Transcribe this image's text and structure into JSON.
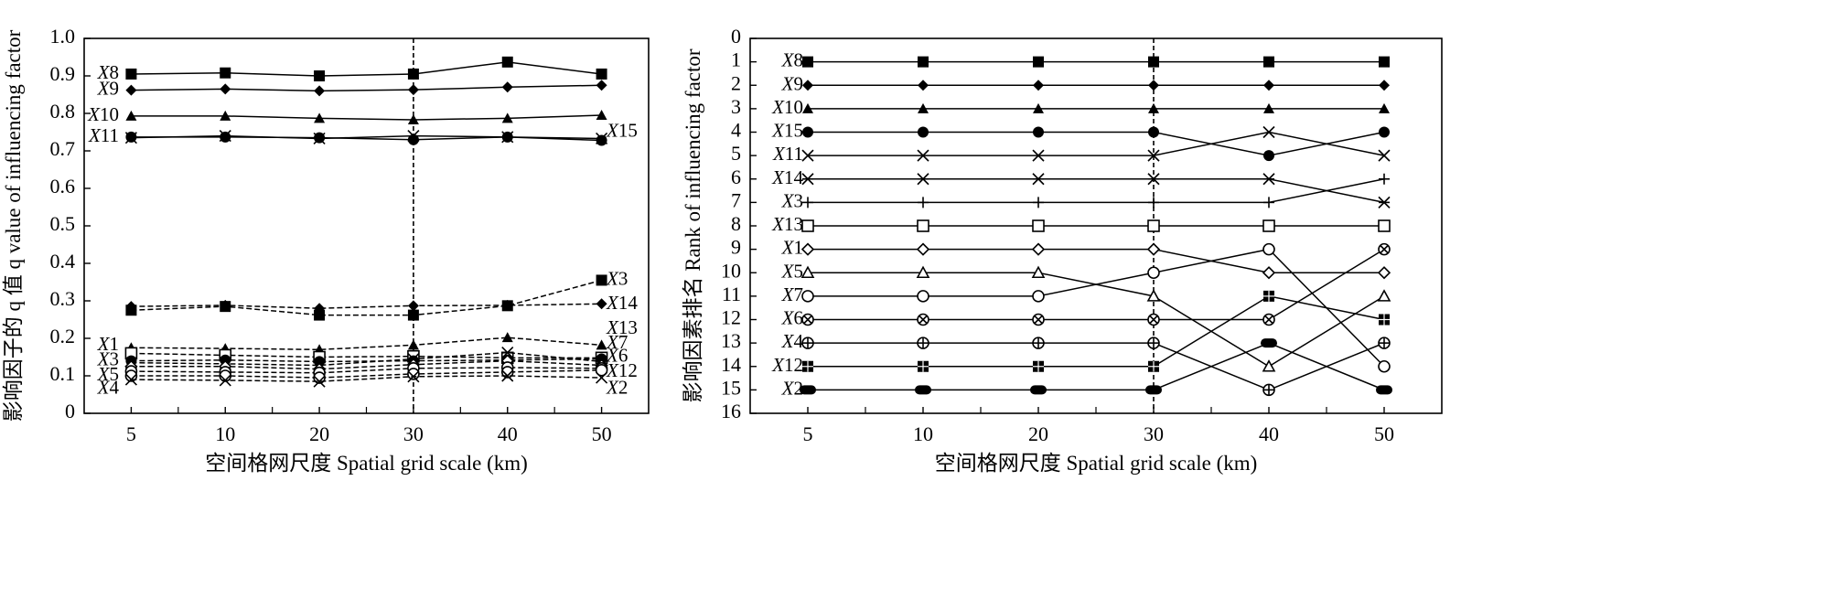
{
  "chart_data": [
    {
      "type": "line",
      "ylabel": "影响因子的 q 值 q value of influencing factor",
      "xlabel": "空间格网尺度 Spatial grid scale (km)",
      "categories": [
        "5",
        "10",
        "20",
        "30",
        "40",
        "50"
      ],
      "ylim": [
        0,
        1.0
      ],
      "yticks": [
        "0",
        "0.1",
        "0.2",
        "0.3",
        "0.4",
        "0.5",
        "0.6",
        "0.7",
        "0.8",
        "0.9",
        "1.0"
      ],
      "reference_line_at": "30",
      "series": [
        {
          "name": "X8",
          "marker": "square-filled",
          "dash": "solid",
          "values": [
            0.905,
            0.908,
            0.9,
            0.905,
            0.937,
            0.905
          ]
        },
        {
          "name": "X9",
          "marker": "diamond-filled",
          "dash": "solid",
          "values": [
            0.862,
            0.865,
            0.86,
            0.863,
            0.87,
            0.875
          ]
        },
        {
          "name": "X10",
          "marker": "triangle-filled",
          "dash": "solid",
          "values": [
            0.793,
            0.793,
            0.787,
            0.783,
            0.787,
            0.795
          ]
        },
        {
          "name": "X15",
          "marker": "circle-filled",
          "dash": "solid",
          "values": [
            0.737,
            0.737,
            0.735,
            0.73,
            0.737,
            0.728
          ]
        },
        {
          "name": "X11",
          "marker": "x",
          "dash": "solid",
          "values": [
            0.735,
            0.74,
            0.733,
            0.74,
            0.737,
            0.733
          ]
        },
        {
          "name": "X3",
          "marker": "square-filled",
          "dash": "dashed",
          "values": [
            0.275,
            0.285,
            0.262,
            0.262,
            0.287,
            0.355
          ]
        },
        {
          "name": "X14",
          "marker": "diamond-filled",
          "dash": "dashed",
          "values": [
            0.285,
            0.288,
            0.28,
            0.287,
            0.288,
            0.292
          ]
        },
        {
          "name": "X1",
          "marker": "triangle-filled",
          "dash": "dashed",
          "values": [
            0.175,
            0.173,
            0.17,
            0.182,
            0.202,
            0.182
          ]
        },
        {
          "name": "X13",
          "marker": "square-open",
          "dash": "dashed",
          "values": [
            0.16,
            0.155,
            0.15,
            0.152,
            0.148,
            0.148
          ]
        },
        {
          "name": "X7",
          "marker": "circle-filled",
          "dash": "dashed",
          "values": [
            0.14,
            0.142,
            0.138,
            0.14,
            0.142,
            0.145
          ]
        },
        {
          "name": "X6",
          "marker": "x",
          "dash": "dashed",
          "values": [
            0.135,
            0.132,
            0.128,
            0.145,
            0.162,
            0.138
          ]
        },
        {
          "name": "X12",
          "marker": "diamond-open",
          "dash": "dashed",
          "values": [
            0.125,
            0.125,
            0.118,
            0.13,
            0.14,
            0.128
          ]
        },
        {
          "name": "X5",
          "marker": "circle-open",
          "dash": "dashed",
          "values": [
            0.112,
            0.11,
            0.108,
            0.12,
            0.122,
            0.12
          ]
        },
        {
          "name": "X4",
          "marker": "circle-open",
          "dash": "dashed",
          "values": [
            0.1,
            0.1,
            0.095,
            0.105,
            0.11,
            0.115
          ]
        },
        {
          "name": "X2",
          "marker": "x",
          "dash": "dashed",
          "values": [
            0.09,
            0.088,
            0.085,
            0.098,
            0.1,
            0.095
          ]
        }
      ],
      "series_labels": {
        "left": [
          {
            "text": "X8",
            "y": 0.905
          },
          {
            "text": "X9",
            "y": 0.862
          },
          {
            "text": "X10",
            "y": 0.793
          },
          {
            "text": "X11",
            "y": 0.736
          },
          {
            "text": "X1",
            "y": 0.18
          },
          {
            "text": "X3",
            "y": 0.14
          },
          {
            "text": "X5",
            "y": 0.1
          },
          {
            "text": "X4",
            "y": 0.065
          }
        ],
        "right": [
          {
            "text": "X15",
            "y": 0.75
          },
          {
            "text": "X3",
            "y": 0.355
          },
          {
            "text": "X14",
            "y": 0.29
          },
          {
            "text": "X13",
            "y": 0.225
          },
          {
            "text": "X7",
            "y": 0.185
          },
          {
            "text": "X6",
            "y": 0.15
          },
          {
            "text": "X12",
            "y": 0.11
          },
          {
            "text": "X2",
            "y": 0.065
          }
        ]
      }
    },
    {
      "type": "line",
      "ylabel": "影响因素排名 Rank of influencing factor",
      "xlabel": "空间格网尺度 Spatial grid scale (km)",
      "categories": [
        "5",
        "10",
        "20",
        "30",
        "40",
        "50"
      ],
      "ylim": [
        0,
        16
      ],
      "y_inverted": true,
      "yticks": [
        "0",
        "1",
        "2",
        "3",
        "4",
        "5",
        "6",
        "7",
        "8",
        "9",
        "10",
        "11",
        "12",
        "13",
        "14",
        "15",
        "16"
      ],
      "reference_line_at": "30",
      "series": [
        {
          "name": "X8",
          "marker": "square-filled",
          "values": [
            1,
            1,
            1,
            1,
            1,
            1
          ]
        },
        {
          "name": "X9",
          "marker": "diamond-filled",
          "values": [
            2,
            2,
            2,
            2,
            2,
            2
          ]
        },
        {
          "name": "X10",
          "marker": "triangle-filled",
          "values": [
            3,
            3,
            3,
            3,
            3,
            3
          ]
        },
        {
          "name": "X15",
          "marker": "circle-filled",
          "values": [
            4,
            4,
            4,
            4,
            5,
            4
          ]
        },
        {
          "name": "X11",
          "marker": "x",
          "values": [
            5,
            5,
            5,
            5,
            4,
            5
          ]
        },
        {
          "name": "X14",
          "marker": "star",
          "values": [
            6,
            6,
            6,
            6,
            6,
            7
          ]
        },
        {
          "name": "X3",
          "marker": "plus",
          "values": [
            7,
            7,
            7,
            7,
            7,
            6
          ]
        },
        {
          "name": "X13",
          "marker": "square-open",
          "values": [
            8,
            8,
            8,
            8,
            8,
            8
          ]
        },
        {
          "name": "X1",
          "marker": "diamond-open",
          "values": [
            9,
            9,
            9,
            9,
            10,
            10
          ]
        },
        {
          "name": "X5",
          "marker": "triangle-open",
          "values": [
            10,
            10,
            10,
            11,
            14,
            11
          ]
        },
        {
          "name": "X7",
          "marker": "circle-open",
          "values": [
            11,
            11,
            11,
            10,
            9,
            14
          ]
        },
        {
          "name": "X6",
          "marker": "circle-cross",
          "values": [
            12,
            12,
            12,
            12,
            12,
            9
          ]
        },
        {
          "name": "X4",
          "marker": "circle-plus",
          "values": [
            13,
            13,
            13,
            13,
            15,
            13
          ]
        },
        {
          "name": "X12",
          "marker": "square-cross",
          "values": [
            14,
            14,
            14,
            14,
            11,
            12
          ]
        },
        {
          "name": "X2",
          "marker": "pill-filled",
          "values": [
            15,
            15,
            15,
            15,
            13,
            15
          ]
        }
      ],
      "left_labels": [
        "X8",
        "X9",
        "X10",
        "X15",
        "X11",
        "X14",
        "X3",
        "X13",
        "X1",
        "X5",
        "X7",
        "X6",
        "X4",
        "X12",
        "X2"
      ]
    }
  ]
}
